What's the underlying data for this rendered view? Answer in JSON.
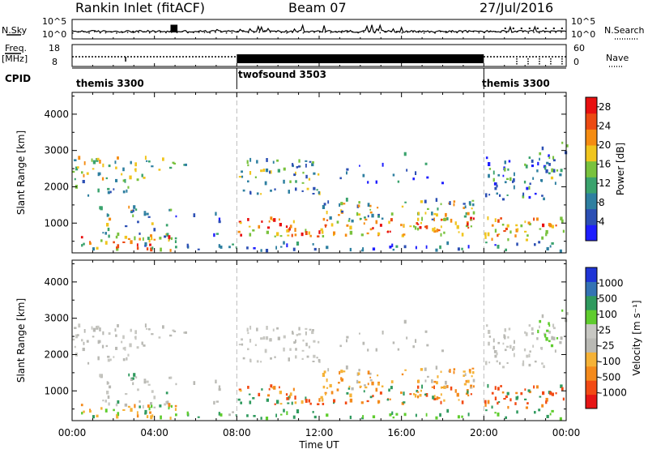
{
  "header": {
    "station": "Rankin Inlet (fitACF)",
    "beam": "Beam 07",
    "date": "27/Jul/2016"
  },
  "strips": {
    "nsky_label": "N.Sky",
    "nsky_ticks": [
      "10^5",
      "10^0"
    ],
    "nsearch_label": "N.Search",
    "nsearch_ticks": [
      "10^5",
      "10^0"
    ],
    "freq_label_1": "Freq.",
    "freq_label_2": "[MHz]",
    "freq_ticks": [
      "18",
      "8"
    ],
    "nave_label": "Nave",
    "nave_ticks": [
      "60",
      "0"
    ],
    "cpid_label": "CPID",
    "cpid_segments": [
      {
        "name": "themis 3300",
        "start_hour": 0,
        "end_hour": 8
      },
      {
        "name": "twofsound 3503",
        "start_hour": 8,
        "end_hour": 20
      },
      {
        "name": "themis 3300",
        "start_hour": 20,
        "end_hour": 24
      }
    ]
  },
  "colors": {
    "power": [
      "#1e1eff",
      "#2c4fb4",
      "#2e7fa0",
      "#3aa36d",
      "#79c23d",
      "#f0c51e",
      "#f58c12",
      "#ec4a12",
      "#e81010"
    ],
    "velocity": [
      "#e61515",
      "#f24a14",
      "#f48a1c",
      "#f5b237",
      "#b9b9b4",
      "#c7c7c2",
      "#5fcc2e",
      "#2f9a5e",
      "#3473b4",
      "#1f35d6"
    ]
  },
  "chart_data": [
    {
      "type": "heatmap",
      "title": "Power",
      "xlabel": "",
      "ylabel": "Slant Range [km]",
      "x_range_hours": [
        0,
        24
      ],
      "ylim": [
        180,
        4600
      ],
      "x_ticks": [
        "00:00",
        "04:00",
        "08:00",
        "12:00",
        "16:00",
        "20:00",
        "00:00"
      ],
      "y_ticks": [
        1000,
        2000,
        3000,
        4000
      ],
      "colorbar_label": "Power [dB]",
      "colorbar_ticks": [
        4,
        8,
        12,
        16,
        20,
        24,
        28
      ],
      "colorbar_range": [
        0,
        30
      ],
      "mode_changes_hours": [
        8,
        20
      ]
    },
    {
      "type": "heatmap",
      "title": "Velocity",
      "xlabel": "Time UT",
      "ylabel": "Slant Range [km]",
      "x_range_hours": [
        0,
        24
      ],
      "ylim": [
        180,
        4600
      ],
      "x_ticks": [
        "00:00",
        "04:00",
        "08:00",
        "12:00",
        "16:00",
        "20:00",
        "00:00"
      ],
      "y_ticks": [
        1000,
        2000,
        3000,
        4000
      ],
      "colorbar_label": "Velocity [m s⁻¹]",
      "colorbar_ticks": [
        1000,
        500,
        100,
        25,
        -25,
        -100,
        -500,
        -1000
      ],
      "mode_changes_hours": [
        8,
        20
      ]
    }
  ]
}
